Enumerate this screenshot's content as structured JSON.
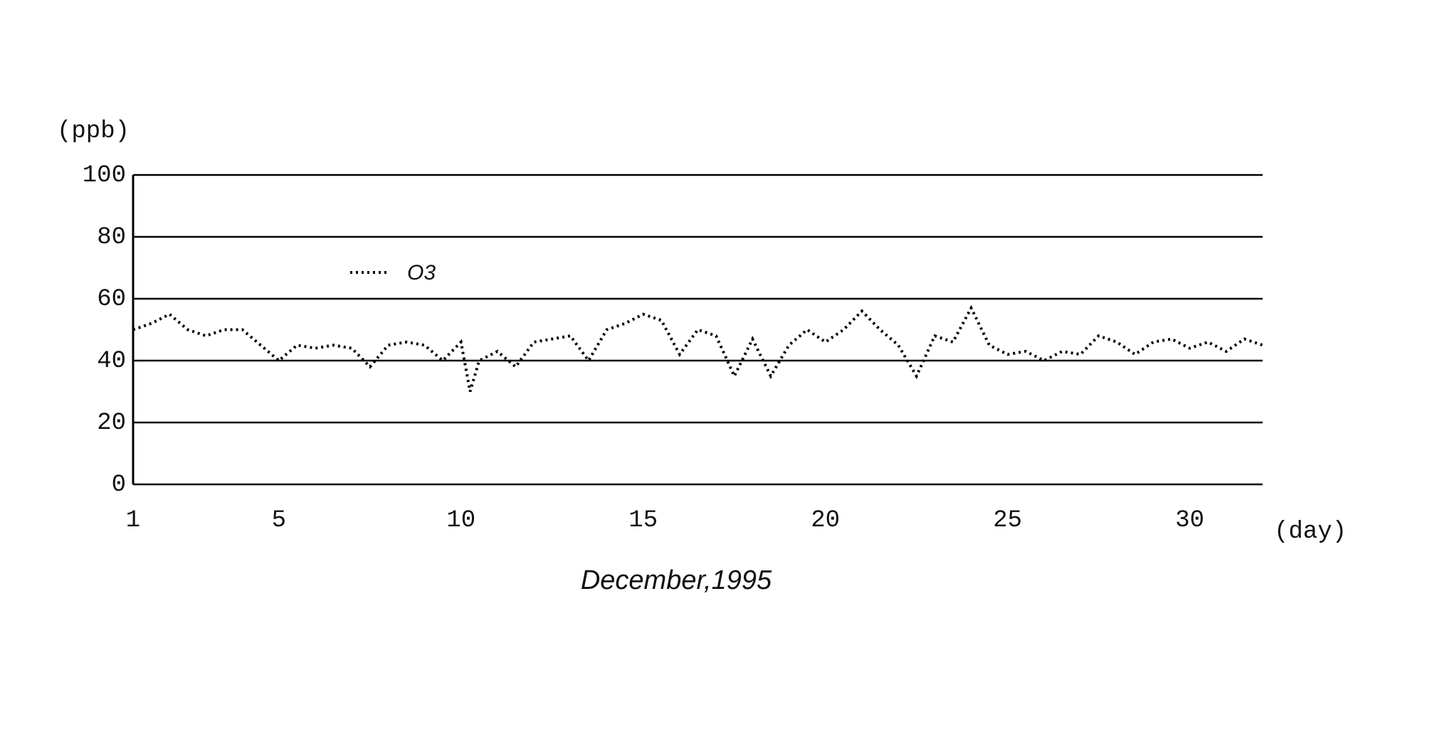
{
  "chart_data": {
    "type": "line",
    "y_label": "(ppb)",
    "x_unit": "(day)",
    "x_label": "December,1995",
    "x": [
      1,
      1.5,
      2,
      2.5,
      3,
      3.5,
      4,
      4.5,
      5,
      5.5,
      6,
      6.5,
      7,
      7.5,
      8,
      8.5,
      9,
      9.5,
      10,
      10.25,
      10.5,
      11,
      11.5,
      12,
      12.5,
      13,
      13.5,
      14,
      14.5,
      15,
      15.5,
      16,
      16.5,
      17,
      17.5,
      18,
      18.5,
      19,
      19.5,
      20,
      20.5,
      21,
      21.5,
      22,
      22.5,
      23,
      23.5,
      24,
      24.5,
      25,
      25.5,
      26,
      26.5,
      27,
      27.5,
      28,
      28.5,
      29,
      29.5,
      30,
      30.5,
      31,
      31.5,
      32
    ],
    "series": [
      {
        "name": "O3",
        "color": "#000000",
        "values": [
          50,
          52,
          55,
          50,
          48,
          50,
          50,
          45,
          40,
          45,
          44,
          45,
          44,
          38,
          45,
          46,
          45,
          40,
          46,
          30,
          40,
          43,
          38,
          46,
          47,
          48,
          40,
          50,
          52,
          55,
          53,
          42,
          50,
          48,
          35,
          47,
          35,
          45,
          50,
          46,
          50,
          56,
          50,
          45,
          35,
          48,
          46,
          57,
          45,
          42,
          43,
          40,
          43,
          42,
          48,
          46,
          42,
          46,
          47,
          44,
          46,
          43,
          47,
          45
        ]
      }
    ],
    "xlim": [
      1,
      32
    ],
    "ylim": [
      0,
      100
    ],
    "xticks": [
      1,
      5,
      10,
      15,
      20,
      25,
      30
    ],
    "yticks": [
      0,
      20,
      40,
      60,
      80,
      100
    ],
    "grid": true,
    "line_style": "dotted",
    "legend_position": "upper left"
  }
}
